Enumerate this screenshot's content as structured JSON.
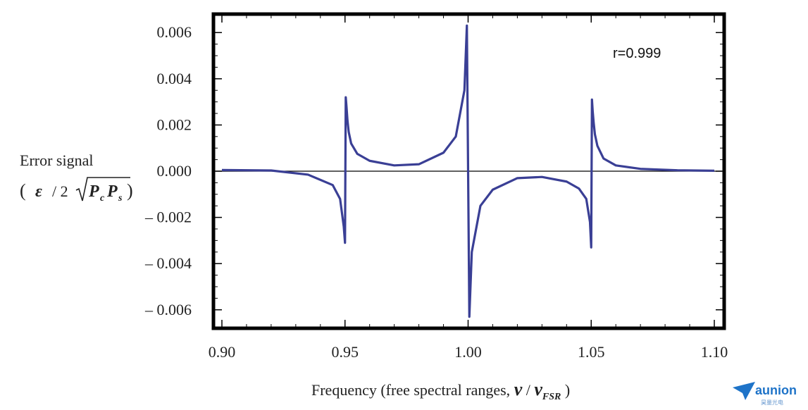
{
  "chart_data": {
    "type": "line",
    "xlabel_text": "Frequency (free spectral ranges, ",
    "xlabel_nu": "ν",
    "xlabel_slash": " / ",
    "xlabel_nufsr": "ν",
    "xlabel_sub": "FSR",
    "xlabel_close": " )",
    "ylabel_line1": "Error signal",
    "ylabel_open": "(",
    "ylabel_eps": "ε",
    "ylabel_div": "/ 2",
    "ylabel_P1": "P",
    "ylabel_c": "c",
    "ylabel_P2": "P",
    "ylabel_s": "s",
    "ylabel_close": ")",
    "annotation": "r=0.999",
    "xlim": [
      0.9,
      1.1
    ],
    "ylim": [
      -0.0068,
      0.0068
    ],
    "x_ticks": [
      0.9,
      0.95,
      1.0,
      1.05,
      1.1
    ],
    "x_tick_labels": [
      "0.90",
      "0.95",
      "1.00",
      "1.05",
      "1.10"
    ],
    "y_ticks": [
      0.006,
      0.004,
      0.002,
      0.0,
      -0.002,
      -0.004,
      -0.006
    ],
    "y_tick_labels": [
      "0.006",
      "0.004",
      "0.002",
      "0.000",
      "– 0.002",
      "– 0.004",
      "– 0.006"
    ],
    "grid": false,
    "line_color": "#3a3f95",
    "zero_line_color": "#000000",
    "series": [
      {
        "x": [
          0.9,
          0.92,
          0.935,
          0.945,
          0.948,
          0.9495,
          0.95,
          0.9503,
          0.9506,
          0.951,
          0.9515,
          0.9525,
          0.955,
          0.96,
          0.97,
          0.98,
          0.99,
          0.995,
          0.9985,
          0.9995,
          1.0,
          1.0005,
          1.0015,
          1.005,
          1.01,
          1.02,
          1.03,
          1.04,
          1.045,
          1.048,
          1.0495,
          1.05,
          1.0503,
          1.0506,
          1.051,
          1.0515,
          1.0525,
          1.055,
          1.06,
          1.07,
          1.085,
          1.1
        ],
        "y": [
          5e-05,
          3e-05,
          -0.00015,
          -0.0006,
          -0.0012,
          -0.0024,
          -0.0031,
          0.0032,
          0.0028,
          0.0022,
          0.0017,
          0.0012,
          0.00075,
          0.00045,
          0.00025,
          0.0003,
          0.0008,
          0.0015,
          0.0035,
          0.0063,
          0.0,
          -0.0063,
          -0.0035,
          -0.0015,
          -0.0008,
          -0.0003,
          -0.00025,
          -0.00045,
          -0.00075,
          -0.0012,
          -0.0022,
          -0.0033,
          0.0031,
          0.0026,
          0.0021,
          0.0016,
          0.0011,
          0.00055,
          0.00025,
          0.0001,
          4e-05,
          2e-05
        ]
      }
    ]
  },
  "logo": {
    "main": "aunion",
    "sub": "昊量光电"
  }
}
